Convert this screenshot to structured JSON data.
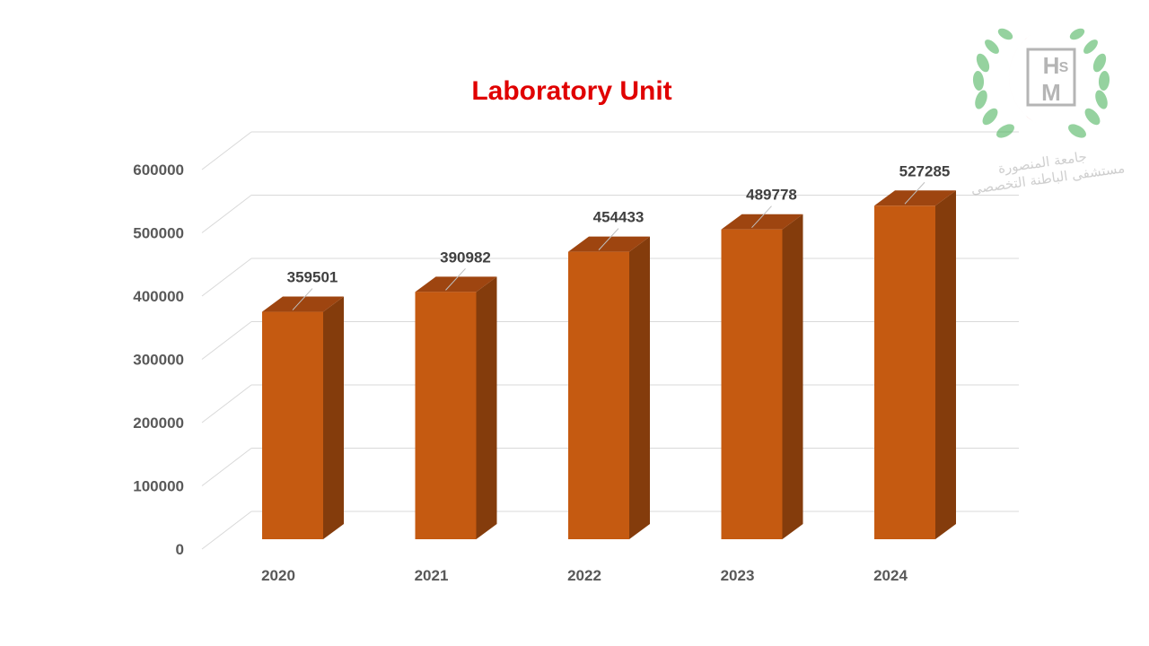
{
  "chart_data": {
    "type": "bar",
    "title": "Laboratory Unit",
    "categories": [
      "2020",
      "2021",
      "2022",
      "2023",
      "2024"
    ],
    "values": [
      359501,
      390982,
      454433,
      489778,
      527285
    ],
    "xlabel": "",
    "ylabel": "",
    "ylim": [
      0,
      600000
    ],
    "yticks": [
      0,
      100000,
      200000,
      300000,
      400000,
      500000,
      600000
    ],
    "yticklabels": [
      "0",
      "100000",
      "200000",
      "300000",
      "400000",
      "500000",
      "600000"
    ],
    "grid": true,
    "legend": "none",
    "style": "3d-column"
  },
  "colors": {
    "title": "#e00000",
    "bar_front": "#c55a11",
    "bar_side": "#843c0c",
    "bar_top": "#9e4510",
    "grid": "#d9d9d9",
    "axis_text": "#595959",
    "value_text": "#404040"
  },
  "logo": {
    "letters": [
      "H",
      "S",
      "M"
    ],
    "line1": "جامعة المنصورة",
    "line2": "مستشفى الباطنة التخصصى"
  }
}
